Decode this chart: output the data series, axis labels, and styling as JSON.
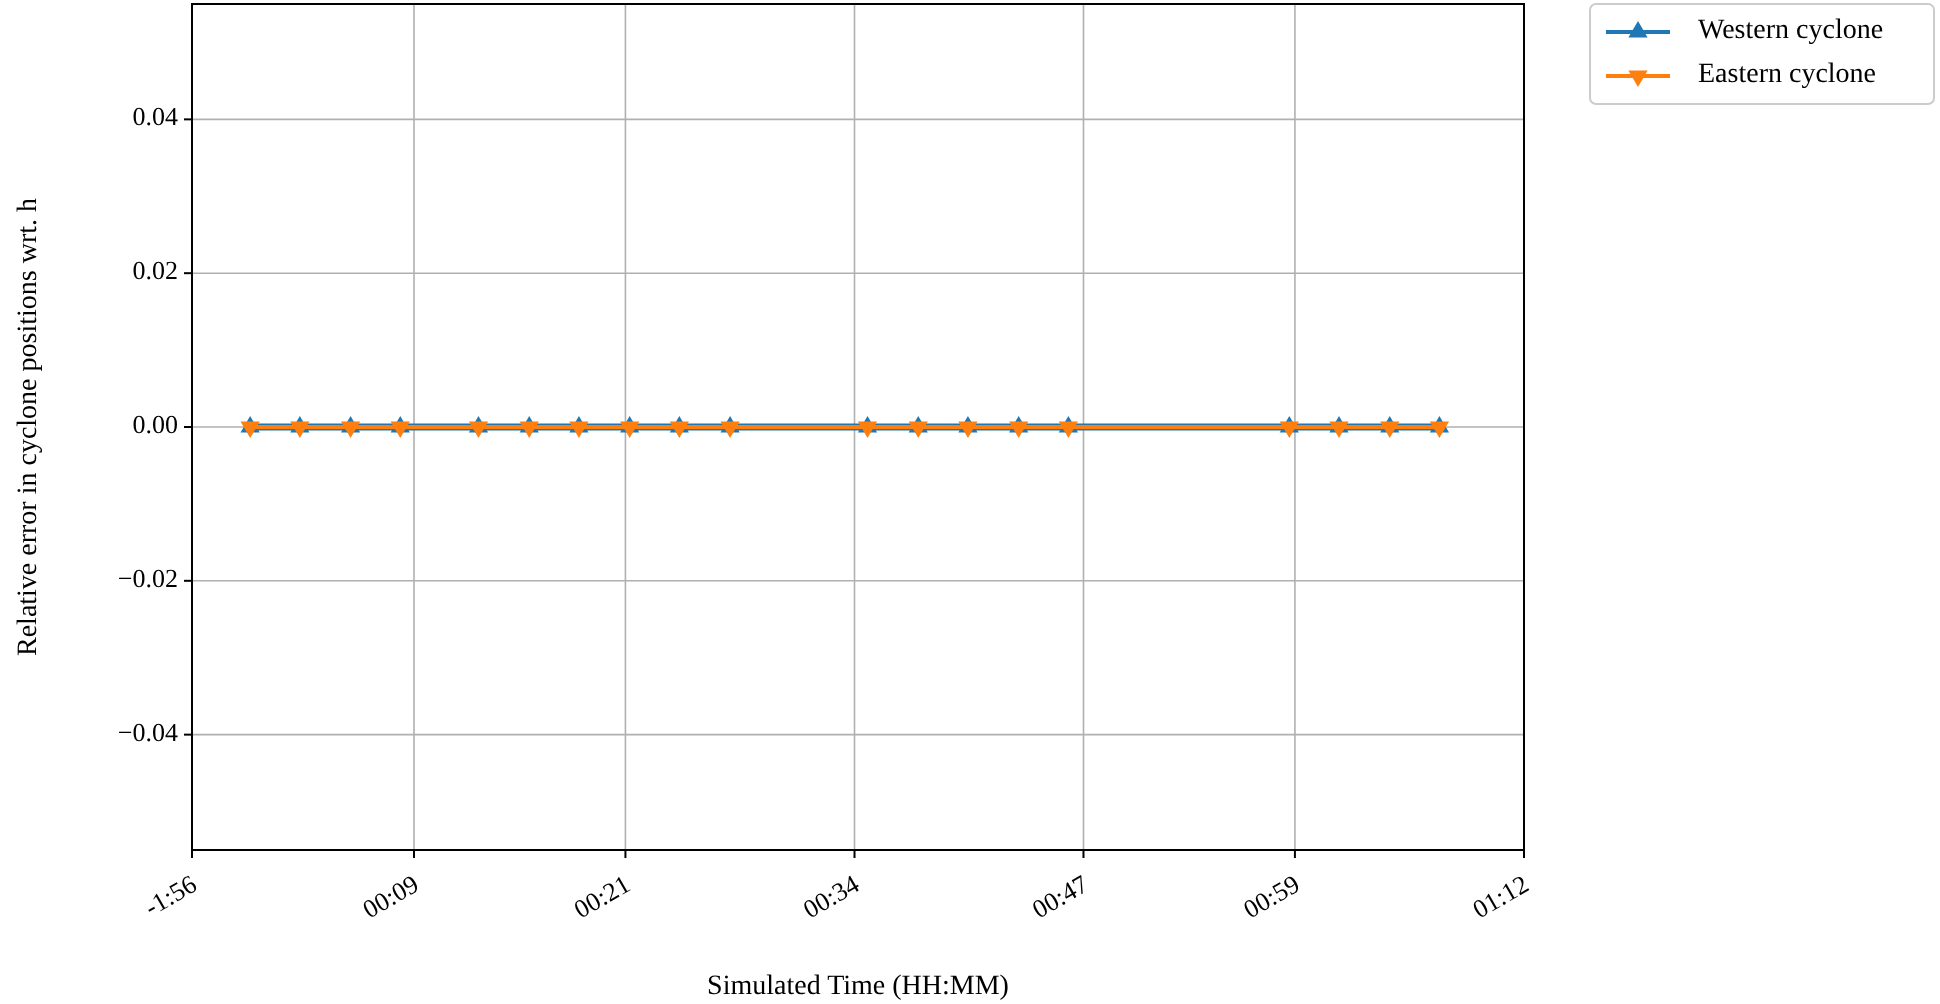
{
  "chart_data": {
    "type": "line",
    "xlabel": "Simulated Time (HH:MM)",
    "ylabel": "Relative error in cyclone positions wrt. h",
    "x": [
      -0.005,
      0.042,
      0.09,
      0.137,
      0.211,
      0.259,
      0.306,
      0.354,
      0.401,
      0.449,
      0.579,
      0.627,
      0.674,
      0.722,
      0.769,
      0.978,
      1.025,
      1.073,
      1.12
    ],
    "series": [
      {
        "name": "Western cyclone",
        "color": "#1f77b4",
        "marker": "triangle",
        "values": [
          0,
          0,
          0,
          0,
          0,
          0,
          0,
          0,
          0,
          0,
          0,
          0,
          0,
          0,
          0,
          0,
          0,
          0,
          0
        ]
      },
      {
        "name": "Eastern cyclone",
        "color": "#ff7f0e",
        "marker": "triangle-down",
        "values": [
          0,
          0,
          0,
          0,
          0,
          0,
          0,
          0,
          0,
          0,
          0,
          0,
          0,
          0,
          0,
          0,
          0,
          0,
          0
        ]
      }
    ],
    "xlim": [
      -0.06,
      1.2
    ],
    "xticks": [
      {
        "value": -0.06,
        "label": "-1:56"
      },
      {
        "value": 0.15,
        "label": "00:09"
      },
      {
        "value": 0.35,
        "label": "00:21"
      },
      {
        "value": 0.5667,
        "label": "00:34"
      },
      {
        "value": 0.7833,
        "label": "00:47"
      },
      {
        "value": 0.9833,
        "label": "00:59"
      },
      {
        "value": 1.2,
        "label": "01:12"
      }
    ],
    "ylim": [
      -0.055,
      0.055
    ],
    "yticks": [
      {
        "value": -0.04,
        "label": "−0.04"
      },
      {
        "value": -0.02,
        "label": "−0.02"
      },
      {
        "value": 0,
        "label": "0.00"
      },
      {
        "value": 0.02,
        "label": "0.02"
      },
      {
        "value": 0.04,
        "label": "0.04"
      }
    ],
    "grid": true,
    "legend": "top right",
    "line_style": "solid"
  }
}
